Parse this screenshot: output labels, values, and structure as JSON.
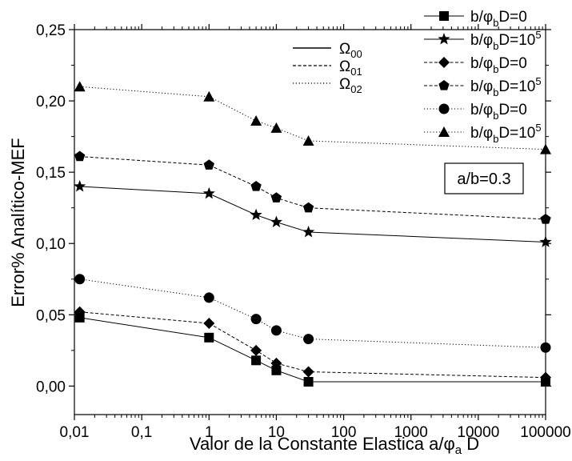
{
  "chart_data": {
    "type": "line",
    "title": "",
    "xlabel": {
      "main": "Valor de la Constante Elastica a/",
      "phi": "φ",
      "sub": "a",
      "tail": " D"
    },
    "ylabel": "Error% Analítico-MEF",
    "x_scale": "log",
    "xlim": [
      0.01,
      100000
    ],
    "ylim": [
      -0.02,
      0.25
    ],
    "x_ticks": [
      0.01,
      0.1,
      1,
      10,
      100,
      1000,
      10000,
      100000
    ],
    "x_tick_labels": [
      "0,01",
      "0,1",
      "1",
      "10",
      "100",
      "1000",
      "10000",
      "100000"
    ],
    "y_ticks": [
      0.0,
      0.05,
      0.1,
      0.15,
      0.2,
      0.25
    ],
    "y_tick_labels": [
      "0,00",
      "0,05",
      "0,10",
      "0,15",
      "0,20",
      "0,25"
    ],
    "grid": false,
    "annotation": "a/b=0.3",
    "line_style_legend": [
      {
        "label": "Ω",
        "sub": "00",
        "style": "solid"
      },
      {
        "label": "Ω",
        "sub": "01",
        "style": "dashed"
      },
      {
        "label": "Ω",
        "sub": "02",
        "style": "dotted"
      }
    ],
    "series": [
      {
        "name": "b/φbD=0",
        "legend": {
          "pre": "b/",
          "phi": "φ",
          "sub": "b",
          "post": "D=0",
          "sup": ""
        },
        "marker": "square",
        "line": "solid",
        "x": [
          0.012,
          1,
          5,
          10,
          30,
          100000
        ],
        "y": [
          0.048,
          0.034,
          0.018,
          0.011,
          0.003,
          0.003
        ]
      },
      {
        "name": "b/φbD=10^5",
        "legend": {
          "pre": "b/",
          "phi": "φ",
          "sub": "b",
          "post": "D=10",
          "sup": "5"
        },
        "marker": "star",
        "line": "solid",
        "x": [
          0.012,
          1,
          5,
          10,
          30,
          100000
        ],
        "y": [
          0.14,
          0.135,
          0.12,
          0.115,
          0.108,
          0.101
        ]
      },
      {
        "name": "b/φbD=0",
        "legend": {
          "pre": "b/",
          "phi": "φ",
          "sub": "b",
          "post": "D=0",
          "sup": ""
        },
        "marker": "diamond",
        "line": "dashed",
        "x": [
          0.012,
          1,
          5,
          10,
          30,
          100000
        ],
        "y": [
          0.052,
          0.044,
          0.025,
          0.016,
          0.01,
          0.006
        ]
      },
      {
        "name": "b/φbD=10^5",
        "legend": {
          "pre": "b/",
          "phi": "φ",
          "sub": "b",
          "post": "D=10",
          "sup": "5"
        },
        "marker": "pentagon",
        "line": "dashed",
        "x": [
          0.012,
          1,
          5,
          10,
          30,
          100000
        ],
        "y": [
          0.161,
          0.155,
          0.14,
          0.132,
          0.125,
          0.117
        ]
      },
      {
        "name": "b/φbD=0",
        "legend": {
          "pre": "b/",
          "phi": "φ",
          "sub": "b",
          "post": "D=0",
          "sup": ""
        },
        "marker": "circle",
        "line": "dotted",
        "x": [
          0.012,
          1,
          5,
          10,
          30,
          100000
        ],
        "y": [
          0.075,
          0.062,
          0.047,
          0.039,
          0.033,
          0.027
        ]
      },
      {
        "name": "b/φbD=10^5",
        "legend": {
          "pre": "b/",
          "phi": "φ",
          "sub": "b",
          "post": "D=10",
          "sup": "5"
        },
        "marker": "triangle",
        "line": "dotted",
        "x": [
          0.012,
          1,
          5,
          10,
          30,
          100000
        ],
        "y": [
          0.21,
          0.203,
          0.186,
          0.181,
          0.172,
          0.166
        ]
      }
    ]
  }
}
